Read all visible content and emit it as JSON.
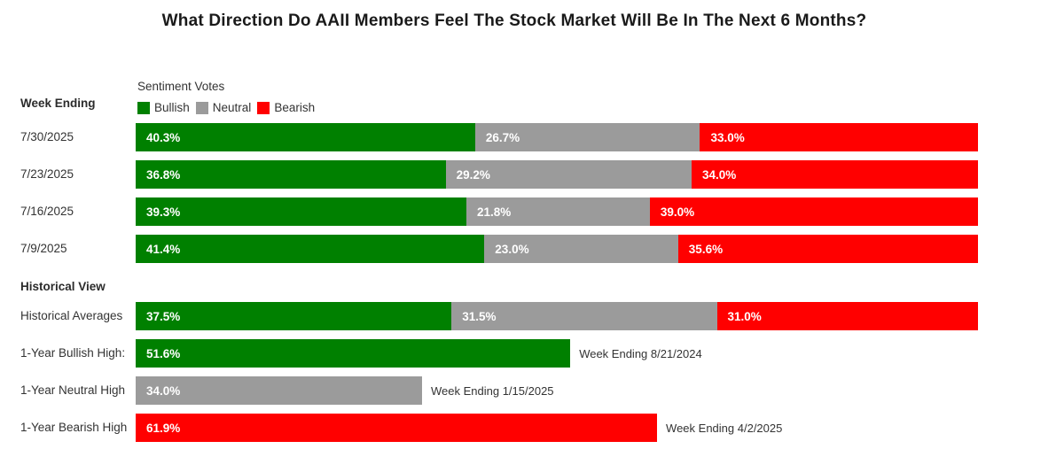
{
  "title": "What Direction Do AAII Members Feel The Stock Market Will Be In The Next 6 Months?",
  "left_column_header": "Week Ending",
  "chart_data": {
    "type": "bar",
    "orientation": "horizontal",
    "stacked": true,
    "unit": "%",
    "xlim": [
      0,
      100
    ],
    "legend_title": "Sentiment Votes",
    "legend": [
      "Bullish",
      "Neutral",
      "Bearish"
    ],
    "legend_position": "top-left",
    "grid": false,
    "series_colors": {
      "bullish": "#008000",
      "neutral": "#9b9b9b",
      "bearish": "#ff0000"
    },
    "categories": [
      "7/30/2025",
      "7/23/2025",
      "7/16/2025",
      "7/9/2025",
      "Historical Averages"
    ],
    "series": [
      {
        "name": "Bullish",
        "values": [
          40.3,
          36.8,
          39.3,
          41.4,
          37.5
        ]
      },
      {
        "name": "Neutral",
        "values": [
          26.7,
          29.2,
          21.8,
          23.0,
          31.5
        ]
      },
      {
        "name": "Bearish",
        "values": [
          33.0,
          34.0,
          39.0,
          35.6,
          31.0
        ]
      }
    ],
    "weekly": {
      "heading": "Week Ending",
      "rows": [
        {
          "label": "7/30/2025",
          "values": {
            "bullish": "40.3%",
            "neutral": "26.7%",
            "bearish": "33.0%"
          }
        },
        {
          "label": "7/23/2025",
          "values": {
            "bullish": "36.8%",
            "neutral": "29.2%",
            "bearish": "34.0%"
          }
        },
        {
          "label": "7/16/2025",
          "values": {
            "bullish": "39.3%",
            "neutral": "21.8%",
            "bearish": "39.0%"
          }
        },
        {
          "label": "7/9/2025",
          "values": {
            "bullish": "41.4%",
            "neutral": "23.0%",
            "bearish": "35.6%"
          }
        }
      ]
    },
    "historical": {
      "heading": "Historical View",
      "averages": {
        "label": "Historical Averages",
        "values": {
          "bullish": "37.5%",
          "neutral": "31.5%",
          "bearish": "31.0%"
        }
      },
      "highs": [
        {
          "label": "1-Year Bullish High:",
          "series": "Bullish",
          "value": "51.6%",
          "value_pct": 51.6,
          "annotation": "Week Ending 8/21/2024"
        },
        {
          "label": "1-Year Neutral High",
          "series": "Neutral",
          "value": "34.0%",
          "value_pct": 34.0,
          "annotation": "Week Ending 1/15/2025"
        },
        {
          "label": "1-Year Bearish High",
          "series": "Bearish",
          "value": "61.9%",
          "value_pct": 61.9,
          "annotation": "Week Ending 4/2/2025"
        }
      ]
    }
  }
}
